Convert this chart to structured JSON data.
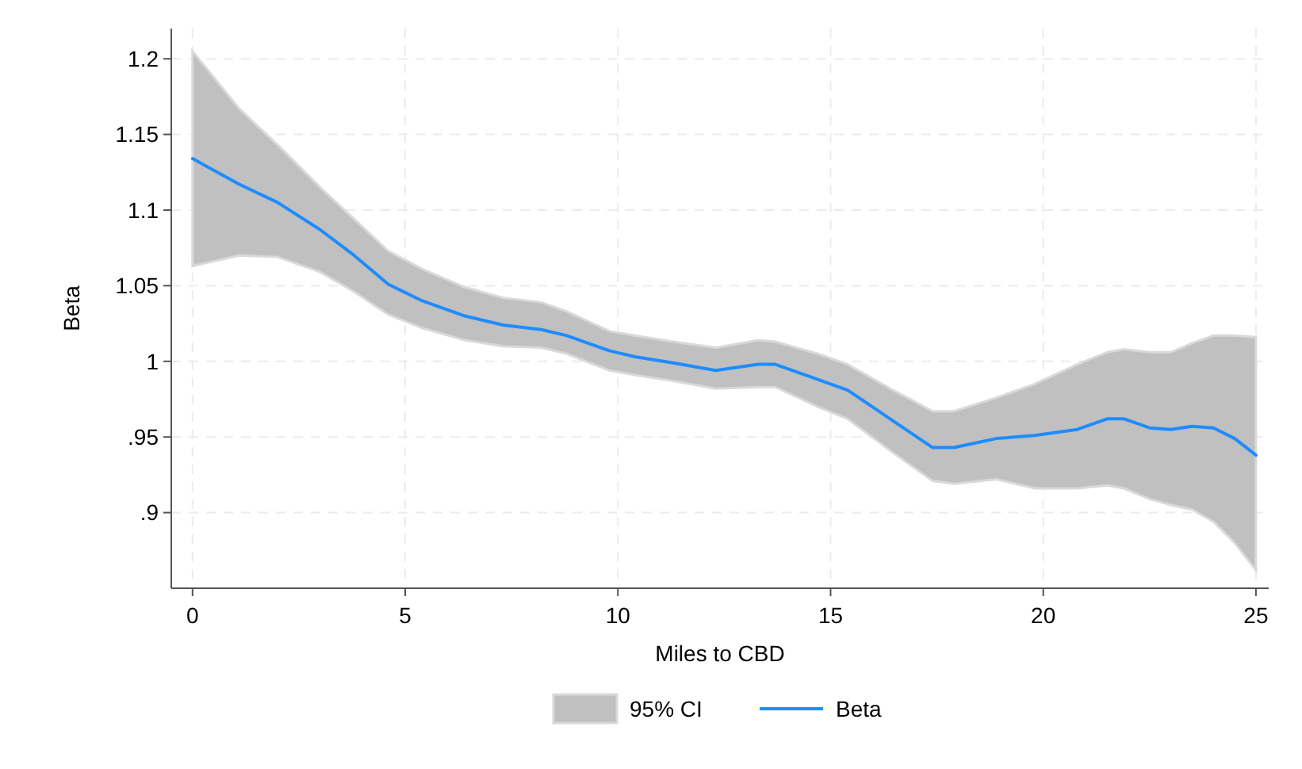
{
  "chart_data": {
    "type": "line",
    "xlabel": "Miles to CBD",
    "ylabel": "Beta",
    "annotations": [
      "95% CI"
    ],
    "x": [
      0,
      1.1,
      2,
      3,
      3.8,
      4.6,
      5.4,
      6.4,
      7.3,
      8.2,
      8.8,
      9.8,
      10.4,
      11.3,
      12.3,
      13.3,
      13.7,
      14.7,
      15.4,
      16.4,
      17.4,
      17.9,
      18.9,
      19.8,
      20.8,
      21.5,
      21.9,
      22.5,
      23,
      23.5,
      24,
      24.5,
      25
    ],
    "series": [
      {
        "name": "Beta",
        "color": "#1e8cff",
        "values": [
          1.134,
          1.117,
          1.105,
          1.087,
          1.07,
          1.051,
          1.04,
          1.03,
          1.024,
          1.021,
          1.017,
          1.007,
          1.003,
          0.999,
          0.994,
          0.998,
          0.998,
          0.988,
          0.981,
          0.962,
          0.943,
          0.943,
          0.949,
          0.951,
          0.955,
          0.962,
          0.962,
          0.956,
          0.955,
          0.957,
          0.956,
          0.949,
          0.938
        ],
        "lower": [
          1.063,
          1.07,
          1.069,
          1.059,
          1.046,
          1.031,
          1.022,
          1.014,
          1.01,
          1.009,
          1.005,
          0.994,
          0.991,
          0.987,
          0.982,
          0.983,
          0.983,
          0.97,
          0.962,
          0.941,
          0.921,
          0.919,
          0.922,
          0.916,
          0.916,
          0.918,
          0.916,
          0.909,
          0.905,
          0.902,
          0.894,
          0.88,
          0.862
        ],
        "upper": [
          1.205,
          1.167,
          1.143,
          1.115,
          1.094,
          1.073,
          1.061,
          1.049,
          1.042,
          1.039,
          1.033,
          1.02,
          1.017,
          1.013,
          1.009,
          1.014,
          1.013,
          1.005,
          0.998,
          0.982,
          0.967,
          0.967,
          0.976,
          0.985,
          0.998,
          1.006,
          1.008,
          1.006,
          1.006,
          1.012,
          1.017,
          1.017,
          1.016
        ]
      }
    ],
    "xlim": [
      -0.5,
      25.3
    ],
    "xticks": [
      0,
      5,
      10,
      15,
      20,
      25
    ],
    "ylim": [
      0.85,
      1.22
    ],
    "yticks": [
      {
        "value": 0.9,
        "label": ".9"
      },
      {
        "value": 0.95,
        "label": ".95"
      },
      1,
      1.05,
      1.1,
      1.15,
      1.2
    ],
    "grid": true,
    "legend": "bottom",
    "line_style": "solid",
    "marker": "none"
  }
}
